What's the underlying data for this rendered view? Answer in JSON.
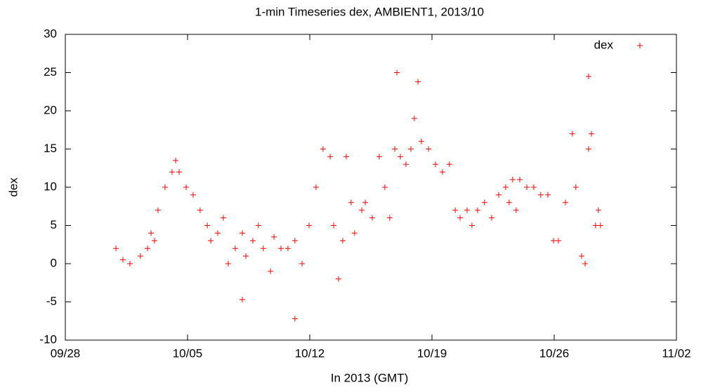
{
  "chart_data": {
    "type": "scatter",
    "title": "1-min Timeseries dex, AMBIENT1, 2013/10",
    "x_label": "In 2013 (GMT)",
    "y_label": "dex",
    "xlim": [
      -2,
      33
    ],
    "ylim": [
      -10,
      30
    ],
    "xticks": [
      {
        "value": -2,
        "label": "09/28"
      },
      {
        "value": 5,
        "label": "10/05"
      },
      {
        "value": 12,
        "label": "10/12"
      },
      {
        "value": 19,
        "label": "10/19"
      },
      {
        "value": 26,
        "label": "10/26"
      },
      {
        "value": 33,
        "label": "11/02"
      }
    ],
    "yticks": [
      -10,
      -5,
      0,
      5,
      10,
      15,
      20,
      25,
      30
    ],
    "grid": false,
    "legend": "top-right",
    "series": [
      {
        "name": "dex",
        "color": "#ff0000",
        "x": [
          0.9,
          1.3,
          1.7,
          2.3,
          2.71,
          2.91,
          3.11,
          3.31,
          3.71,
          4.11,
          4.32,
          4.52,
          4.92,
          5.32,
          5.72,
          6.13,
          6.33,
          6.73,
          7.05,
          7.33,
          7.73,
          8.14,
          8.34,
          8.74,
          9.06,
          9.34,
          9.75,
          9.95,
          10.35,
          10.75,
          11.15,
          11.56,
          11.96,
          12.36,
          12.76,
          13.17,
          13.37,
          13.65,
          13.89,
          14.09,
          14.37,
          14.57,
          14.98,
          15.18,
          15.58,
          15.98,
          16.3,
          16.58,
          16.87,
          17.19,
          17.51,
          17.79,
          17.99,
          18.39,
          18.8,
          19.2,
          19.6,
          20.0,
          20.33,
          20.61,
          21.01,
          21.29,
          21.61,
          22.01,
          22.42,
          22.82,
          23.22,
          23.42,
          23.62,
          23.82,
          24.03,
          24.43,
          24.83,
          25.23,
          25.64,
          25.96,
          26.24,
          26.64,
          27.04,
          27.24,
          27.57,
          27.77,
          27.97,
          28.13,
          28.37,
          28.53,
          28.65,
          27.97,
          8.14,
          11.15,
          16.99,
          18.2
        ],
        "values": [
          2,
          0.5,
          0,
          1,
          2,
          4,
          3,
          7,
          10,
          12,
          13.5,
          12,
          10,
          9,
          7,
          5,
          3,
          4,
          6,
          0,
          2,
          4,
          1,
          3,
          5,
          2,
          -1,
          3.5,
          2,
          2,
          3,
          0,
          5,
          10,
          15,
          14,
          5,
          -2,
          3,
          14,
          8,
          4,
          7,
          8,
          6,
          14,
          10,
          6,
          15,
          14,
          13,
          15,
          19,
          16,
          15,
          13,
          12,
          13,
          7,
          6,
          7,
          5,
          7,
          8,
          6,
          9,
          10,
          8,
          11,
          7,
          11,
          10,
          10,
          9,
          9,
          3,
          3,
          8,
          17,
          10,
          1,
          0,
          15,
          17,
          5,
          7,
          5,
          24.5,
          -4.7,
          -7.2,
          25,
          23.8
        ]
      }
    ]
  }
}
